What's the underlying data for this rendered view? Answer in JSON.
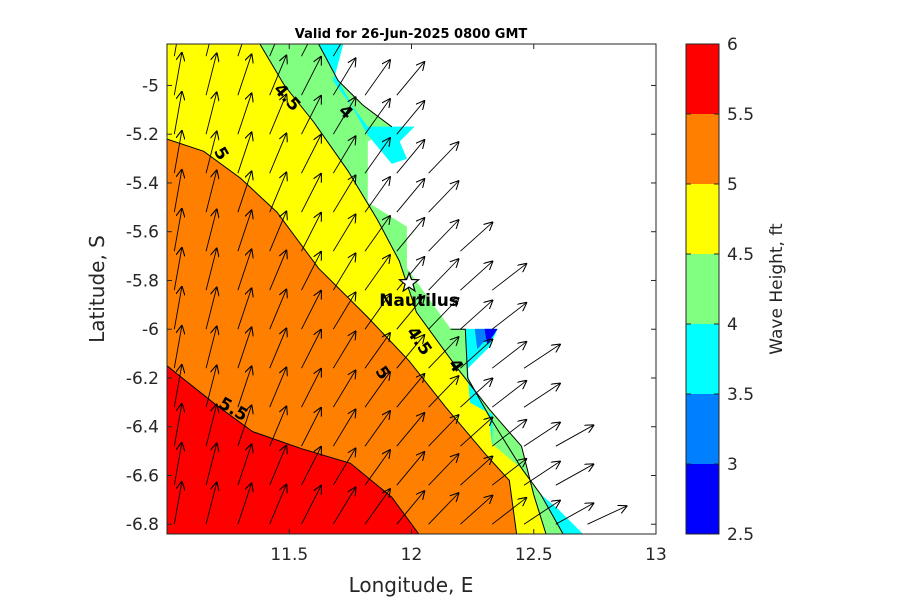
{
  "chart_data": {
    "type": "contour",
    "title": "Valid for 26-Jun-2025 0800 GMT",
    "xlabel": "Longitude, E",
    "ylabel": "Latitude, S",
    "xlim": [
      11.0,
      13.0
    ],
    "ylim": [
      -6.84,
      -4.83
    ],
    "xticks": [
      11.5,
      12,
      12.5,
      13
    ],
    "xtick_labels": [
      "11.5",
      "12",
      "12.5",
      "13"
    ],
    "yticks": [
      -5,
      -5.2,
      -5.4,
      -5.6,
      -5.8,
      -6,
      -6.2,
      -6.4,
      -6.6,
      -6.8
    ],
    "ytick_labels": [
      "-5",
      "-5.2",
      "-5.4",
      "-5.6",
      "-5.8",
      "-6",
      "-6.2",
      "-6.4",
      "-6.6",
      "-6.8"
    ],
    "colorbar": {
      "label": "Wave Height, ft",
      "range": [
        2.5,
        6
      ],
      "ticks": [
        "2.5",
        "3",
        "3.5",
        "4",
        "4.5",
        "5",
        "5.5",
        "6"
      ],
      "levels": [
        {
          "from": 2.5,
          "to": 3.0,
          "color": "#0000ff"
        },
        {
          "from": 3.0,
          "to": 3.5,
          "color": "#0080ff"
        },
        {
          "from": 3.5,
          "to": 4.0,
          "color": "#00ffff"
        },
        {
          "from": 4.0,
          "to": 4.5,
          "color": "#80ff80"
        },
        {
          "from": 4.5,
          "to": 5.0,
          "color": "#ffff00"
        },
        {
          "from": 5.0,
          "to": 5.5,
          "color": "#ff8000"
        },
        {
          "from": 5.5,
          "to": 6.0,
          "color": "#ff0000"
        }
      ]
    },
    "regions": [
      {
        "level": 5.5,
        "color": "#ff0000",
        "outline": [
          [
            11.0,
            -6.84
          ],
          [
            11.0,
            -6.15
          ],
          [
            11.2,
            -6.31
          ],
          [
            11.35,
            -6.42
          ],
          [
            11.55,
            -6.49
          ],
          [
            11.75,
            -6.55
          ],
          [
            11.92,
            -6.69
          ],
          [
            12.03,
            -6.84
          ]
        ]
      },
      {
        "level": 5.0,
        "color": "#ff8000",
        "outline": [
          [
            11.0,
            -6.15
          ],
          [
            11.0,
            -5.22
          ],
          [
            11.15,
            -5.27
          ],
          [
            11.3,
            -5.38
          ],
          [
            11.45,
            -5.52
          ],
          [
            11.62,
            -5.75
          ],
          [
            11.82,
            -5.95
          ],
          [
            11.99,
            -6.13
          ],
          [
            12.14,
            -6.32
          ],
          [
            12.3,
            -6.51
          ],
          [
            12.4,
            -6.62
          ],
          [
            12.43,
            -6.84
          ],
          [
            12.03,
            -6.84
          ],
          [
            11.92,
            -6.69
          ],
          [
            11.75,
            -6.55
          ],
          [
            11.55,
            -6.49
          ],
          [
            11.35,
            -6.42
          ],
          [
            11.2,
            -6.31
          ]
        ]
      },
      {
        "level": 4.5,
        "color": "#ffff00",
        "outline": [
          [
            11.0,
            -5.22
          ],
          [
            11.0,
            -4.83
          ],
          [
            11.38,
            -4.83
          ],
          [
            11.48,
            -5.0
          ],
          [
            11.6,
            -5.15
          ],
          [
            11.74,
            -5.35
          ],
          [
            11.86,
            -5.55
          ],
          [
            11.95,
            -5.72
          ],
          [
            12.02,
            -5.93
          ],
          [
            12.18,
            -6.15
          ],
          [
            12.32,
            -6.33
          ],
          [
            12.45,
            -6.48
          ],
          [
            12.5,
            -6.68
          ],
          [
            12.55,
            -6.84
          ],
          [
            12.43,
            -6.84
          ],
          [
            12.4,
            -6.62
          ],
          [
            12.3,
            -6.51
          ],
          [
            12.14,
            -6.32
          ],
          [
            11.99,
            -6.13
          ],
          [
            11.82,
            -5.95
          ],
          [
            11.62,
            -5.75
          ],
          [
            11.45,
            -5.52
          ],
          [
            11.3,
            -5.38
          ],
          [
            11.15,
            -5.27
          ]
        ]
      },
      {
        "level": 4.0,
        "color": "#80ff80",
        "outline": [
          [
            11.38,
            -4.83
          ],
          [
            11.62,
            -4.83
          ],
          [
            11.7,
            -4.98
          ],
          [
            11.8,
            -5.08
          ],
          [
            11.92,
            -5.17
          ],
          [
            11.82,
            -5.23
          ],
          [
            11.82,
            -5.48
          ],
          [
            11.98,
            -5.58
          ],
          [
            11.98,
            -5.75
          ],
          [
            12.16,
            -6.0
          ],
          [
            12.22,
            -6.0
          ],
          [
            12.23,
            -6.2
          ],
          [
            12.32,
            -6.36
          ],
          [
            12.33,
            -6.47
          ],
          [
            12.45,
            -6.57
          ],
          [
            12.53,
            -6.68
          ],
          [
            12.62,
            -6.84
          ],
          [
            12.55,
            -6.84
          ],
          [
            12.5,
            -6.68
          ],
          [
            12.45,
            -6.48
          ],
          [
            12.32,
            -6.33
          ],
          [
            12.18,
            -6.15
          ],
          [
            12.02,
            -5.93
          ],
          [
            11.95,
            -5.72
          ],
          [
            11.86,
            -5.55
          ],
          [
            11.74,
            -5.35
          ],
          [
            11.6,
            -5.15
          ],
          [
            11.48,
            -5.0
          ]
        ]
      },
      {
        "level": 3.5,
        "color": "#00ffff",
        "outline": [
          [
            11.62,
            -4.83
          ],
          [
            11.72,
            -4.83
          ],
          [
            11.68,
            -4.98
          ],
          [
            11.82,
            -5.17
          ],
          [
            12.01,
            -5.17
          ],
          [
            11.95,
            -5.23
          ],
          [
            11.98,
            -5.3
          ],
          [
            11.92,
            -5.32
          ],
          [
            11.82,
            -5.2
          ],
          [
            11.7,
            -4.98
          ]
        ]
      },
      {
        "level": 3.5,
        "color": "#00ffff",
        "outline": [
          [
            12.16,
            -6.0
          ],
          [
            12.35,
            -6.0
          ],
          [
            12.32,
            -6.07
          ],
          [
            12.23,
            -6.16
          ],
          [
            12.24,
            -6.3
          ],
          [
            12.33,
            -6.35
          ],
          [
            12.33,
            -6.47
          ],
          [
            12.32,
            -6.36
          ],
          [
            12.23,
            -6.2
          ],
          [
            12.22,
            -6.0
          ]
        ]
      },
      {
        "level": 3.5,
        "color": "#00ffff",
        "outline": [
          [
            12.53,
            -6.68
          ],
          [
            12.6,
            -6.74
          ],
          [
            12.7,
            -6.84
          ],
          [
            12.62,
            -6.84
          ]
        ]
      },
      {
        "level": 3.0,
        "color": "#0080ff",
        "outline": [
          [
            12.26,
            -6.0
          ],
          [
            12.34,
            -6.0
          ],
          [
            12.27,
            -6.08
          ]
        ]
      },
      {
        "level": 2.5,
        "color": "#0000ff",
        "outline": [
          [
            12.3,
            -6.0
          ],
          [
            12.35,
            -6.0
          ],
          [
            12.31,
            -6.06
          ]
        ]
      }
    ],
    "contour_lines": [
      {
        "level": 5.5,
        "points": [
          [
            11.0,
            -6.15
          ],
          [
            11.2,
            -6.31
          ],
          [
            11.35,
            -6.42
          ],
          [
            11.55,
            -6.49
          ],
          [
            11.75,
            -6.55
          ],
          [
            11.92,
            -6.69
          ],
          [
            12.03,
            -6.84
          ]
        ]
      },
      {
        "level": 5.0,
        "points": [
          [
            11.0,
            -5.22
          ],
          [
            11.15,
            -5.27
          ],
          [
            11.3,
            -5.38
          ],
          [
            11.45,
            -5.52
          ],
          [
            11.62,
            -5.75
          ],
          [
            11.82,
            -5.95
          ],
          [
            11.99,
            -6.13
          ],
          [
            12.14,
            -6.32
          ],
          [
            12.3,
            -6.51
          ],
          [
            12.4,
            -6.62
          ],
          [
            12.43,
            -6.84
          ]
        ]
      },
      {
        "level": 4.5,
        "points": [
          [
            11.38,
            -4.83
          ],
          [
            11.48,
            -5.0
          ],
          [
            11.6,
            -5.15
          ],
          [
            11.74,
            -5.35
          ],
          [
            11.86,
            -5.55
          ],
          [
            11.95,
            -5.72
          ],
          [
            12.02,
            -5.93
          ],
          [
            12.18,
            -6.15
          ],
          [
            12.32,
            -6.33
          ],
          [
            12.45,
            -6.48
          ],
          [
            12.5,
            -6.68
          ],
          [
            12.55,
            -6.84
          ]
        ]
      },
      {
        "level": 4.0,
        "points": [
          [
            11.62,
            -4.83
          ],
          [
            11.7,
            -4.98
          ],
          [
            11.8,
            -5.08
          ],
          [
            11.92,
            -5.17
          ]
        ]
      },
      {
        "level": 4.0,
        "points": [
          [
            12.16,
            -6.0
          ],
          [
            12.22,
            -6.0
          ],
          [
            12.23,
            -6.2
          ],
          [
            12.32,
            -6.36
          ],
          [
            12.45,
            -6.57
          ],
          [
            12.53,
            -6.68
          ],
          [
            12.62,
            -6.84
          ]
        ]
      }
    ],
    "contour_labels": [
      {
        "text": "4.5",
        "x": 11.49,
        "y": -5.05,
        "angle": 48
      },
      {
        "text": "4",
        "x": 11.73,
        "y": -5.11,
        "angle": 45
      },
      {
        "text": "5",
        "x": 11.22,
        "y": -5.28,
        "angle": 60
      },
      {
        "text": "4.5",
        "x": 12.03,
        "y": -6.05,
        "angle": 55
      },
      {
        "text": "4",
        "x": 12.18,
        "y": -6.15,
        "angle": 55
      },
      {
        "text": "5",
        "x": 11.88,
        "y": -6.18,
        "angle": 55
      },
      {
        "text": "5.5",
        "x": 11.27,
        "y": -6.33,
        "angle": 30
      }
    ],
    "vector_field": {
      "x": [
        11.03,
        11.16,
        11.29,
        11.42,
        11.55,
        11.68,
        11.81,
        11.94,
        12.07,
        12.2,
        12.33,
        12.46,
        12.59,
        12.72
      ],
      "y": [
        -4.88,
        -5.04,
        -5.2,
        -5.36,
        -5.52,
        -5.68,
        -5.84,
        -6.0,
        -6.16,
        -6.32,
        -6.48,
        -6.64,
        -6.8
      ],
      "coast_min_lon": [
        11.75,
        11.98,
        12.05,
        12.12,
        12.19,
        12.26,
        12.33,
        12.4,
        12.47,
        12.54,
        12.61,
        12.68,
        12.77
      ]
    },
    "station": {
      "name": "Nautilus",
      "lon": 11.99,
      "lat": -5.81
    }
  }
}
